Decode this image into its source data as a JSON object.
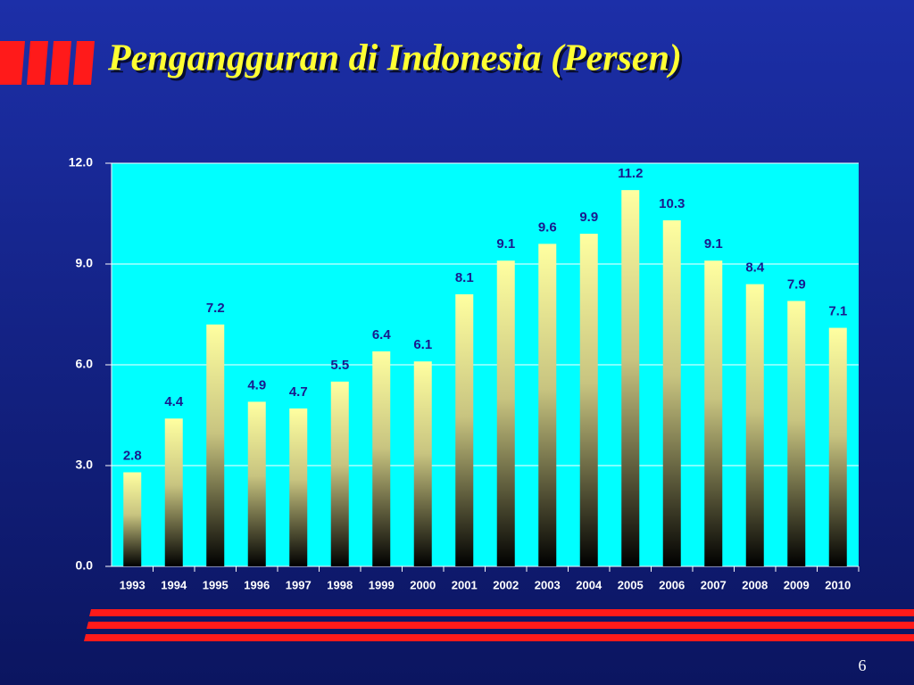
{
  "chart_data": {
    "type": "bar",
    "title": "Pengangguran di Indonesia (Persen)",
    "categories": [
      "1993",
      "1994",
      "1995",
      "1996",
      "1997",
      "1998",
      "1999",
      "2000",
      "2001",
      "2002",
      "2003",
      "2004",
      "2005",
      "2006",
      "2007",
      "2008",
      "2009",
      "2010"
    ],
    "values": [
      2.8,
      4.4,
      7.2,
      4.9,
      4.7,
      5.5,
      6.4,
      6.1,
      8.1,
      9.1,
      9.6,
      9.9,
      11.2,
      10.3,
      9.1,
      8.4,
      7.9,
      7.1
    ],
    "color": "#ffffa0",
    "plot_background": "#00ffff",
    "ylim": [
      0,
      12
    ],
    "yticks": [
      {
        "value": 0,
        "label": "0.0"
      },
      {
        "value": 3,
        "label": "3.0"
      },
      {
        "value": 6,
        "label": "6.0"
      },
      {
        "value": 9,
        "label": "9.0"
      },
      {
        "value": 12,
        "label": "12.0"
      }
    ],
    "grid": true
  },
  "slide": {
    "page_number": "6"
  }
}
